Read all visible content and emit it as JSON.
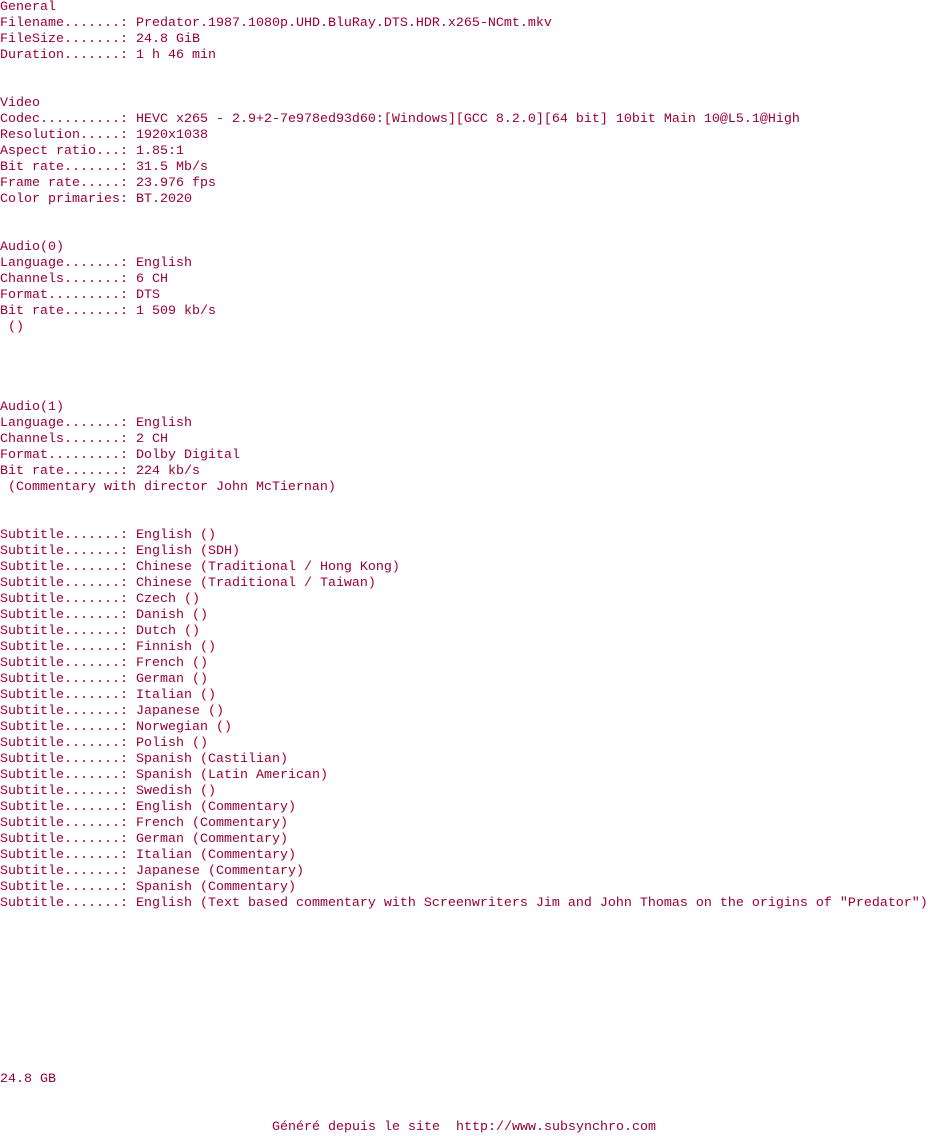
{
  "sections": [
    {
      "title": "General",
      "rows": [
        {
          "label": "Filename.......:",
          "value": "Predator.1987.1080p.UHD.BluRay.DTS.HDR.x265-NCmt.mkv"
        },
        {
          "label": "FileSize.......:",
          "value": "24.8 GiB"
        },
        {
          "label": "Duration.......:",
          "value": "1 h 46 min"
        }
      ]
    },
    {
      "title": "Video",
      "rows": [
        {
          "label": "Codec..........:",
          "value": "HEVC x265 - 2.9+2-7e978ed93d60:[Windows][GCC 8.2.0][64 bit] 10bit Main 10@L5.1@High"
        },
        {
          "label": "Resolution.....:",
          "value": "1920x1038"
        },
        {
          "label": "Aspect ratio...:",
          "value": "1.85:1"
        },
        {
          "label": "Bit rate.......:",
          "value": "31.5 Mb/s"
        },
        {
          "label": "Frame rate.....:",
          "value": "23.976 fps"
        },
        {
          "label": "Color primaries:",
          "value": "BT.2020"
        }
      ]
    },
    {
      "title": "Audio(0)",
      "rows": [
        {
          "label": "Language.......:",
          "value": "English"
        },
        {
          "label": "Channels.......:",
          "value": "6 CH"
        },
        {
          "label": "Format.........:",
          "value": "DTS"
        },
        {
          "label": "Bit rate.......:",
          "value": "1 509 kb/s"
        }
      ],
      "note": "()"
    },
    {
      "title": "Audio(1)",
      "rows": [
        {
          "label": "Language.......:",
          "value": "English"
        },
        {
          "label": "Channels.......:",
          "value": "2 CH"
        },
        {
          "label": "Format.........:",
          "value": "Dolby Digital"
        },
        {
          "label": "Bit rate.......:",
          "value": "224 kb/s"
        }
      ],
      "note": "(Commentary with director John McTiernan)"
    },
    {
      "rows": [
        {
          "label": "Subtitle.......:",
          "value": "English ()"
        },
        {
          "label": "Subtitle.......:",
          "value": "English (SDH)"
        },
        {
          "label": "Subtitle.......:",
          "value": "Chinese (Traditional / Hong Kong)"
        },
        {
          "label": "Subtitle.......:",
          "value": "Chinese (Traditional / Taiwan)"
        },
        {
          "label": "Subtitle.......:",
          "value": "Czech ()"
        },
        {
          "label": "Subtitle.......:",
          "value": "Danish ()"
        },
        {
          "label": "Subtitle.......:",
          "value": "Dutch ()"
        },
        {
          "label": "Subtitle.......:",
          "value": "Finnish ()"
        },
        {
          "label": "Subtitle.......:",
          "value": "French ()"
        },
        {
          "label": "Subtitle.......:",
          "value": "German ()"
        },
        {
          "label": "Subtitle.......:",
          "value": "Italian ()"
        },
        {
          "label": "Subtitle.......:",
          "value": "Japanese ()"
        },
        {
          "label": "Subtitle.......:",
          "value": "Norwegian ()"
        },
        {
          "label": "Subtitle.......:",
          "value": "Polish ()"
        },
        {
          "label": "Subtitle.......:",
          "value": "Spanish (Castilian)"
        },
        {
          "label": "Subtitle.......:",
          "value": "Spanish (Latin American)"
        },
        {
          "label": "Subtitle.......:",
          "value": "Swedish ()"
        },
        {
          "label": "Subtitle.......:",
          "value": "English (Commentary)"
        },
        {
          "label": "Subtitle.......:",
          "value": "French (Commentary)"
        },
        {
          "label": "Subtitle.......:",
          "value": "German (Commentary)"
        },
        {
          "label": "Subtitle.......:",
          "value": "Italian (Commentary)"
        },
        {
          "label": "Subtitle.......:",
          "value": "Japanese (Commentary)"
        },
        {
          "label": "Subtitle.......:",
          "value": "Spanish (Commentary)"
        },
        {
          "label": "Subtitle.......:",
          "value": "English (Text based commentary with Screenwriters Jim and John Thomas on the origins of \"Predator\")"
        }
      ]
    }
  ],
  "total_size": "24.8 GB",
  "footer": {
    "text": "Généré depuis le site",
    "link": "http://www.subsynchro.com"
  }
}
